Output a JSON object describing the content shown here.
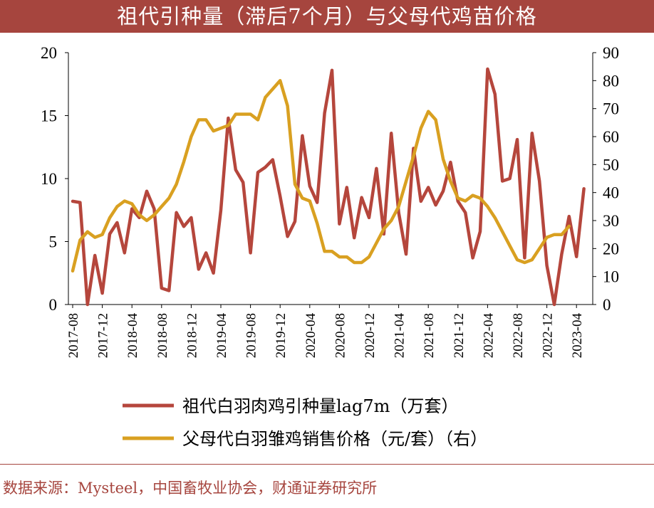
{
  "title": "祖代引种量（滞后7个月）与父母代鸡苗价格",
  "source": "数据来源：Mysteel，中国畜牧业协会，财通证券研究所",
  "colors": {
    "title_bg": "#A6453E",
    "series_red": "#B5463C",
    "series_gold": "#D9A021",
    "source_text": "#A6453E"
  },
  "chart_data": {
    "type": "line",
    "x_tick_labels": [
      "2017-08",
      "2017-12",
      "2018-04",
      "2018-08",
      "2018-12",
      "2019-04",
      "2019-08",
      "2019-12",
      "2020-04",
      "2020-08",
      "2020-12",
      "2021-04",
      "2021-08",
      "2021-12",
      "2022-04",
      "2022-08",
      "2022-12",
      "2023-04"
    ],
    "x_start": "2017-08",
    "y_left": {
      "min": 0,
      "max": 20,
      "ticks": [
        0,
        5,
        10,
        15,
        20
      ]
    },
    "y_right": {
      "min": 0,
      "max": 90,
      "ticks": [
        0,
        10,
        20,
        30,
        40,
        50,
        60,
        70,
        80,
        90
      ]
    },
    "legend_position": "bottom",
    "series": [
      {
        "name": "祖代白羽肉鸡引种量lag7m（万套）",
        "axis": "left",
        "color": "#B5463C",
        "values": [
          8.2,
          8.1,
          0.0,
          3.9,
          0.9,
          5.6,
          6.5,
          4.1,
          7.6,
          6.9,
          9.0,
          7.6,
          1.3,
          1.1,
          7.3,
          6.2,
          6.9,
          2.8,
          4.1,
          2.5,
          7.5,
          14.8,
          10.7,
          9.7,
          4.1,
          10.5,
          10.9,
          11.5,
          8.6,
          5.4,
          6.6,
          13.4,
          9.4,
          8.1,
          15.2,
          18.6,
          6.4,
          9.3,
          5.3,
          8.5,
          6.9,
          10.8,
          5.6,
          13.6,
          7.3,
          4.0,
          12.4,
          8.2,
          9.3,
          7.9,
          9.0,
          11.3,
          8.2,
          7.3,
          3.7,
          5.8,
          18.7,
          16.7,
          9.8,
          10.0,
          13.1,
          3.7,
          13.6,
          9.8,
          3.1,
          0.0,
          4.0,
          7.0,
          3.8,
          9.2
        ]
      },
      {
        "name": "父母代白羽雏鸡销售价格（元/套）（右）",
        "axis": "right",
        "color": "#D9A021",
        "values": [
          12,
          23,
          26,
          24,
          25,
          31,
          35,
          37,
          36,
          32,
          30,
          32,
          35,
          38,
          43,
          51,
          60,
          66,
          66,
          62,
          63,
          64,
          68,
          68,
          68,
          66,
          74,
          77,
          80,
          71,
          43,
          38,
          37,
          29,
          19,
          19,
          17,
          17,
          15,
          15,
          17,
          22,
          27,
          30,
          35,
          44,
          53,
          63,
          69,
          66,
          52,
          44,
          38,
          37,
          39,
          38,
          35,
          31,
          26,
          21,
          16,
          15,
          16,
          20,
          24,
          25,
          25,
          28
        ]
      }
    ]
  }
}
